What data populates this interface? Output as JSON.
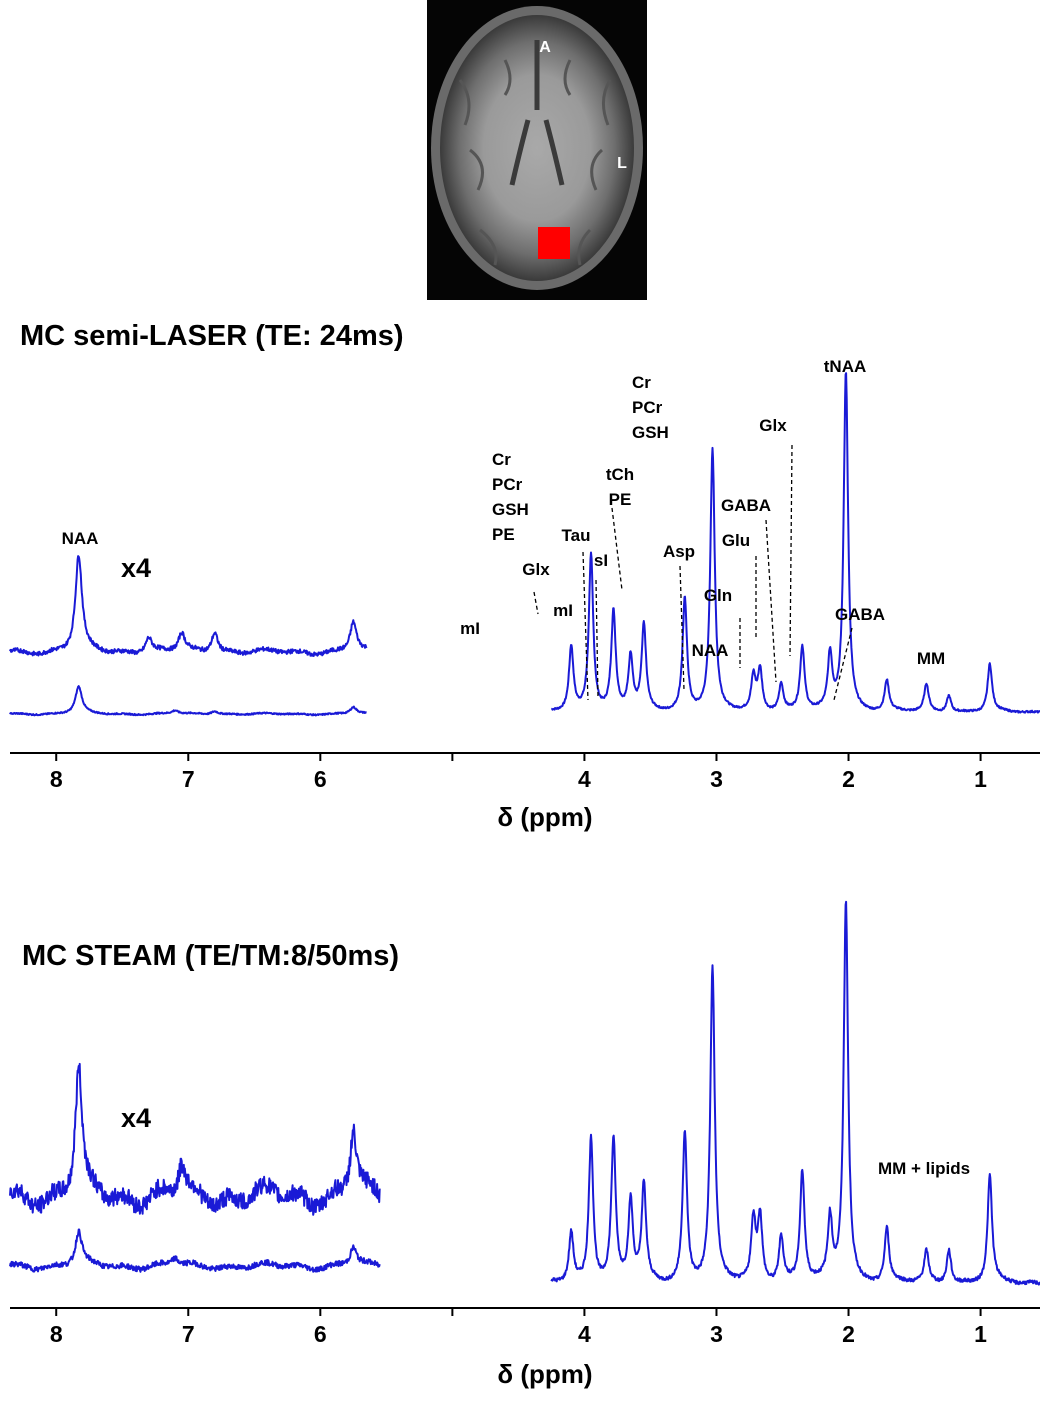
{
  "mri_inset": {
    "orientation_labels": [
      "A",
      "L"
    ],
    "voxel_color": "#ff0000"
  },
  "chart_data": [
    {
      "type": "line",
      "title": "MC semi-LASER (TE: 24ms)",
      "xlabel": "δ (ppm)",
      "ylabel": "",
      "x_axis_reversed": true,
      "xlim": [
        8.35,
        0.55
      ],
      "xticks": [
        8,
        7,
        6,
        5,
        4,
        3,
        2,
        1
      ],
      "xtick_labels": [
        "8",
        "7",
        "6",
        "",
        "4",
        "3",
        "2",
        "1"
      ],
      "scale_label": "x4",
      "line_color": "#1a1ad6",
      "series": [
        {
          "segment": "aliphatic",
          "x_range": [
            4.25,
            0.55
          ],
          "peaks": [
            {
              "ppm": 4.1,
              "height": 0.19
            },
            {
              "ppm": 3.95,
              "height": 0.46
            },
            {
              "ppm": 3.78,
              "height": 0.29
            },
            {
              "ppm": 3.65,
              "height": 0.16
            },
            {
              "ppm": 3.55,
              "height": 0.25
            },
            {
              "ppm": 3.24,
              "height": 0.33
            },
            {
              "ppm": 3.03,
              "height": 0.77
            },
            {
              "ppm": 2.72,
              "height": 0.1
            },
            {
              "ppm": 2.67,
              "height": 0.12
            },
            {
              "ppm": 2.51,
              "height": 0.08
            },
            {
              "ppm": 2.35,
              "height": 0.19
            },
            {
              "ppm": 2.14,
              "height": 0.16
            },
            {
              "ppm": 2.02,
              "height": 1.0
            },
            {
              "ppm": 1.71,
              "height": 0.09
            },
            {
              "ppm": 1.41,
              "height": 0.08
            },
            {
              "ppm": 1.24,
              "height": 0.05
            },
            {
              "ppm": 0.93,
              "height": 0.14
            }
          ]
        },
        {
          "segment": "aromatic",
          "x_range": [
            8.35,
            5.65
          ],
          "peaks": [
            {
              "ppm": 7.83,
              "height": 0.08
            },
            {
              "ppm": 7.1,
              "height": 0.01
            },
            {
              "ppm": 6.8,
              "height": 0.01
            },
            {
              "ppm": 5.75,
              "height": 0.02
            }
          ]
        },
        {
          "segment": "aromatic x4",
          "x_range": [
            8.35,
            5.65
          ],
          "peaks": [
            {
              "ppm": 7.83,
              "height": 0.32
            },
            {
              "ppm": 7.3,
              "height": 0.05
            },
            {
              "ppm": 7.05,
              "height": 0.06
            },
            {
              "ppm": 6.8,
              "height": 0.07
            },
            {
              "ppm": 5.75,
              "height": 0.1
            }
          ]
        }
      ],
      "annotations": [
        {
          "text": [
            "NAA"
          ]
        },
        {
          "text": [
            "mI"
          ]
        },
        {
          "text": [
            "Cr",
            "PCr",
            "GSH",
            "PE"
          ]
        },
        {
          "text": [
            "Glx"
          ]
        },
        {
          "text": [
            "mI"
          ]
        },
        {
          "text": [
            "Tau"
          ]
        },
        {
          "text": [
            "sI"
          ]
        },
        {
          "text": [
            "tCh",
            "PE"
          ]
        },
        {
          "text": [
            "Cr",
            "PCr",
            "GSH"
          ]
        },
        {
          "text": [
            "Asp"
          ]
        },
        {
          "text": [
            "Gln"
          ]
        },
        {
          "text": [
            "NAA"
          ]
        },
        {
          "text": [
            "GABA"
          ]
        },
        {
          "text": [
            "Glu"
          ]
        },
        {
          "text": [
            "Glx"
          ]
        },
        {
          "text": [
            "tNAA"
          ]
        },
        {
          "text": [
            "GABA"
          ]
        },
        {
          "text": [
            "MM"
          ]
        }
      ]
    },
    {
      "type": "line",
      "title": "MC STEAM (TE/TM:8/50ms)",
      "xlabel": "δ (ppm)",
      "ylabel": "",
      "x_axis_reversed": true,
      "xlim": [
        8.35,
        0.55
      ],
      "xticks": [
        8,
        7,
        6,
        5,
        4,
        3,
        2,
        1
      ],
      "xtick_labels": [
        "8",
        "7",
        "6",
        "",
        "4",
        "3",
        "2",
        "1"
      ],
      "scale_label": "x4",
      "line_color": "#1a1ad6",
      "series": [
        {
          "segment": "aliphatic",
          "x_range": [
            4.25,
            0.55
          ],
          "peaks": [
            {
              "ppm": 4.1,
              "height": 0.13
            },
            {
              "ppm": 3.95,
              "height": 0.38
            },
            {
              "ppm": 3.78,
              "height": 0.37
            },
            {
              "ppm": 3.65,
              "height": 0.21
            },
            {
              "ppm": 3.55,
              "height": 0.25
            },
            {
              "ppm": 3.24,
              "height": 0.39
            },
            {
              "ppm": 3.03,
              "height": 0.82
            },
            {
              "ppm": 2.72,
              "height": 0.16
            },
            {
              "ppm": 2.67,
              "height": 0.17
            },
            {
              "ppm": 2.51,
              "height": 0.12
            },
            {
              "ppm": 2.35,
              "height": 0.29
            },
            {
              "ppm": 2.14,
              "height": 0.16
            },
            {
              "ppm": 2.02,
              "height": 1.0
            },
            {
              "ppm": 1.71,
              "height": 0.14
            },
            {
              "ppm": 1.41,
              "height": 0.08
            },
            {
              "ppm": 1.24,
              "height": 0.09
            },
            {
              "ppm": 0.93,
              "height": 0.28
            }
          ]
        },
        {
          "segment": "aromatic",
          "x_range": [
            8.35,
            5.55
          ],
          "peaks": [
            {
              "ppm": 7.83,
              "height": 0.09
            },
            {
              "ppm": 7.1,
              "height": 0.02
            },
            {
              "ppm": 5.75,
              "height": 0.05
            }
          ]
        },
        {
          "segment": "aromatic x4",
          "x_range": [
            8.35,
            5.55
          ],
          "peaks": [
            {
              "ppm": 7.83,
              "height": 0.36
            },
            {
              "ppm": 7.05,
              "height": 0.08
            },
            {
              "ppm": 5.75,
              "height": 0.18
            }
          ]
        }
      ],
      "annotations": [
        {
          "text": [
            "MM + lipids"
          ]
        }
      ]
    }
  ]
}
